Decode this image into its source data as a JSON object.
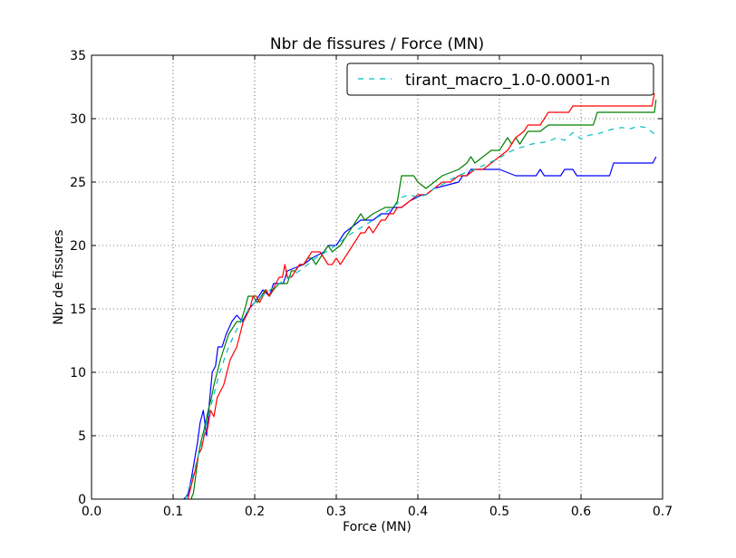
{
  "chart_data": {
    "type": "line",
    "title": "Nbr de fissures / Force (MN)",
    "xlabel": "Force (MN)",
    "ylabel": "Nbr de fissures",
    "xlim": [
      0.0,
      0.7
    ],
    "ylim": [
      0,
      35
    ],
    "xticks": [
      "0.0",
      "0.1",
      "0.2",
      "0.3",
      "0.4",
      "0.5",
      "0.6",
      "0.7"
    ],
    "yticks": [
      "0",
      "5",
      "10",
      "15",
      "20",
      "25",
      "30",
      "35"
    ],
    "grid": true,
    "legend_position": "top-right",
    "legend": [
      {
        "label": "tirant_macro_1.0-0.0001-n",
        "color": "#00bfbf",
        "dash": "dashed"
      }
    ],
    "series": [
      {
        "color": "#0000ff",
        "style": "solid",
        "points": [
          [
            0.113,
            0
          ],
          [
            0.118,
            0.3
          ],
          [
            0.122,
            1.5
          ],
          [
            0.126,
            3
          ],
          [
            0.13,
            4.5
          ],
          [
            0.133,
            6
          ],
          [
            0.137,
            7
          ],
          [
            0.141,
            5
          ],
          [
            0.145,
            8
          ],
          [
            0.148,
            10
          ],
          [
            0.152,
            10.5
          ],
          [
            0.155,
            12
          ],
          [
            0.16,
            12
          ],
          [
            0.165,
            13
          ],
          [
            0.172,
            14
          ],
          [
            0.178,
            14.5
          ],
          [
            0.185,
            14
          ],
          [
            0.193,
            15
          ],
          [
            0.2,
            15.5
          ],
          [
            0.205,
            16
          ],
          [
            0.21,
            16.5
          ],
          [
            0.218,
            16
          ],
          [
            0.223,
            17
          ],
          [
            0.235,
            17
          ],
          [
            0.24,
            18
          ],
          [
            0.26,
            18.5
          ],
          [
            0.27,
            19
          ],
          [
            0.285,
            19.5
          ],
          [
            0.29,
            20
          ],
          [
            0.3,
            20
          ],
          [
            0.305,
            20.5
          ],
          [
            0.31,
            21
          ],
          [
            0.32,
            21.5
          ],
          [
            0.33,
            22
          ],
          [
            0.345,
            22
          ],
          [
            0.355,
            22.5
          ],
          [
            0.365,
            22.5
          ],
          [
            0.37,
            23
          ],
          [
            0.38,
            23
          ],
          [
            0.39,
            23.5
          ],
          [
            0.405,
            24
          ],
          [
            0.41,
            24
          ],
          [
            0.42,
            24.5
          ],
          [
            0.45,
            25
          ],
          [
            0.455,
            25.5
          ],
          [
            0.46,
            25.5
          ],
          [
            0.465,
            26
          ],
          [
            0.5,
            26
          ],
          [
            0.52,
            25.5
          ],
          [
            0.545,
            25.5
          ],
          [
            0.55,
            26
          ],
          [
            0.555,
            25.5
          ],
          [
            0.575,
            25.5
          ],
          [
            0.58,
            26
          ],
          [
            0.59,
            26
          ],
          [
            0.595,
            25.5
          ],
          [
            0.635,
            25.5
          ],
          [
            0.64,
            26.5
          ],
          [
            0.688,
            26.5
          ],
          [
            0.692,
            27
          ]
        ]
      },
      {
        "color": "#008000",
        "style": "solid",
        "points": [
          [
            0.122,
            0
          ],
          [
            0.125,
            0.5
          ],
          [
            0.128,
            2
          ],
          [
            0.131,
            3.5
          ],
          [
            0.134,
            4.5
          ],
          [
            0.138,
            5.5
          ],
          [
            0.143,
            7
          ],
          [
            0.147,
            8
          ],
          [
            0.15,
            9
          ],
          [
            0.154,
            10
          ],
          [
            0.158,
            11
          ],
          [
            0.163,
            12
          ],
          [
            0.168,
            13
          ],
          [
            0.173,
            13.5
          ],
          [
            0.178,
            14
          ],
          [
            0.183,
            14
          ],
          [
            0.188,
            15
          ],
          [
            0.192,
            16
          ],
          [
            0.198,
            16
          ],
          [
            0.203,
            15.5
          ],
          [
            0.208,
            16
          ],
          [
            0.213,
            16.5
          ],
          [
            0.218,
            16
          ],
          [
            0.223,
            16.5
          ],
          [
            0.23,
            17
          ],
          [
            0.24,
            17
          ],
          [
            0.245,
            18
          ],
          [
            0.25,
            18
          ],
          [
            0.255,
            18.5
          ],
          [
            0.26,
            18.5
          ],
          [
            0.265,
            19
          ],
          [
            0.27,
            19
          ],
          [
            0.275,
            18.5
          ],
          [
            0.28,
            19
          ],
          [
            0.285,
            19.5
          ],
          [
            0.29,
            20
          ],
          [
            0.295,
            19.5
          ],
          [
            0.305,
            20
          ],
          [
            0.31,
            20.5
          ],
          [
            0.315,
            21
          ],
          [
            0.32,
            21.5
          ],
          [
            0.325,
            22
          ],
          [
            0.33,
            22.5
          ],
          [
            0.335,
            22
          ],
          [
            0.345,
            22.5
          ],
          [
            0.36,
            23
          ],
          [
            0.37,
            23
          ],
          [
            0.375,
            23.5
          ],
          [
            0.38,
            25.5
          ],
          [
            0.395,
            25.5
          ],
          [
            0.4,
            25
          ],
          [
            0.41,
            24.5
          ],
          [
            0.42,
            25
          ],
          [
            0.43,
            25.5
          ],
          [
            0.45,
            26
          ],
          [
            0.46,
            26.5
          ],
          [
            0.465,
            27
          ],
          [
            0.47,
            26.5
          ],
          [
            0.48,
            27
          ],
          [
            0.49,
            27.5
          ],
          [
            0.5,
            27.5
          ],
          [
            0.505,
            28
          ],
          [
            0.51,
            28.5
          ],
          [
            0.515,
            28
          ],
          [
            0.52,
            28.5
          ],
          [
            0.525,
            28
          ],
          [
            0.53,
            28.5
          ],
          [
            0.535,
            29
          ],
          [
            0.55,
            29
          ],
          [
            0.56,
            29.5
          ],
          [
            0.615,
            29.5
          ],
          [
            0.62,
            30.5
          ],
          [
            0.69,
            30.5
          ],
          [
            0.692,
            31.5
          ]
        ]
      },
      {
        "color": "#ff0000",
        "style": "solid",
        "points": [
          [
            0.118,
            0
          ],
          [
            0.12,
            0.5
          ],
          [
            0.124,
            1.5
          ],
          [
            0.128,
            2.5
          ],
          [
            0.131,
            3.5
          ],
          [
            0.135,
            4
          ],
          [
            0.138,
            5
          ],
          [
            0.142,
            5.5
          ],
          [
            0.146,
            7
          ],
          [
            0.15,
            6.5
          ],
          [
            0.154,
            8
          ],
          [
            0.158,
            8.5
          ],
          [
            0.162,
            9
          ],
          [
            0.166,
            10
          ],
          [
            0.17,
            11
          ],
          [
            0.174,
            11.5
          ],
          [
            0.178,
            12
          ],
          [
            0.182,
            13
          ],
          [
            0.186,
            14
          ],
          [
            0.19,
            14.5
          ],
          [
            0.194,
            15
          ],
          [
            0.198,
            16
          ],
          [
            0.202,
            16
          ],
          [
            0.206,
            15.5
          ],
          [
            0.21,
            16
          ],
          [
            0.214,
            16.5
          ],
          [
            0.218,
            16
          ],
          [
            0.222,
            16.5
          ],
          [
            0.226,
            17
          ],
          [
            0.23,
            17.5
          ],
          [
            0.234,
            17.5
          ],
          [
            0.237,
            18.5
          ],
          [
            0.24,
            17.5
          ],
          [
            0.245,
            17.5
          ],
          [
            0.25,
            18
          ],
          [
            0.255,
            18.5
          ],
          [
            0.26,
            18.5
          ],
          [
            0.265,
            19
          ],
          [
            0.27,
            19.5
          ],
          [
            0.28,
            19.5
          ],
          [
            0.285,
            19
          ],
          [
            0.29,
            18.5
          ],
          [
            0.295,
            18.5
          ],
          [
            0.3,
            19
          ],
          [
            0.305,
            18.5
          ],
          [
            0.31,
            19
          ],
          [
            0.315,
            19.5
          ],
          [
            0.32,
            20
          ],
          [
            0.325,
            20.5
          ],
          [
            0.33,
            21
          ],
          [
            0.335,
            21
          ],
          [
            0.34,
            21.5
          ],
          [
            0.345,
            21
          ],
          [
            0.35,
            21.5
          ],
          [
            0.355,
            22
          ],
          [
            0.36,
            22
          ],
          [
            0.365,
            22.5
          ],
          [
            0.37,
            22.5
          ],
          [
            0.375,
            23
          ],
          [
            0.38,
            23
          ],
          [
            0.39,
            23.5
          ],
          [
            0.4,
            24
          ],
          [
            0.41,
            24
          ],
          [
            0.42,
            24.5
          ],
          [
            0.43,
            25
          ],
          [
            0.44,
            25
          ],
          [
            0.45,
            25.5
          ],
          [
            0.46,
            25.5
          ],
          [
            0.47,
            26
          ],
          [
            0.48,
            26
          ],
          [
            0.49,
            26.5
          ],
          [
            0.5,
            27
          ],
          [
            0.51,
            27.5
          ],
          [
            0.515,
            28
          ],
          [
            0.52,
            28.5
          ],
          [
            0.53,
            29
          ],
          [
            0.535,
            29.5
          ],
          [
            0.55,
            29.5
          ],
          [
            0.555,
            30
          ],
          [
            0.56,
            30.5
          ],
          [
            0.585,
            30.5
          ],
          [
            0.59,
            31
          ],
          [
            0.687,
            31
          ],
          [
            0.69,
            32
          ]
        ]
      },
      {
        "color": "#00bfbf",
        "style": "dashed",
        "points": [
          [
            0.115,
            0
          ],
          [
            0.125,
            2
          ],
          [
            0.135,
            4.5
          ],
          [
            0.145,
            7
          ],
          [
            0.155,
            9.5
          ],
          [
            0.165,
            11.5
          ],
          [
            0.175,
            13
          ],
          [
            0.185,
            14.2
          ],
          [
            0.195,
            15.2
          ],
          [
            0.205,
            15.8
          ],
          [
            0.215,
            16.3
          ],
          [
            0.225,
            16.8
          ],
          [
            0.235,
            17.2
          ],
          [
            0.245,
            17.6
          ],
          [
            0.255,
            18
          ],
          [
            0.265,
            18.5
          ],
          [
            0.275,
            19
          ],
          [
            0.285,
            19.4
          ],
          [
            0.295,
            19.8
          ],
          [
            0.305,
            20.3
          ],
          [
            0.315,
            20.8
          ],
          [
            0.325,
            21.2
          ],
          [
            0.335,
            21.6
          ],
          [
            0.345,
            22
          ],
          [
            0.355,
            22.4
          ],
          [
            0.365,
            22.8
          ],
          [
            0.375,
            23.3
          ],
          [
            0.38,
            23.8
          ],
          [
            0.39,
            24
          ],
          [
            0.4,
            23.8
          ],
          [
            0.41,
            24
          ],
          [
            0.42,
            24.5
          ],
          [
            0.43,
            24.8
          ],
          [
            0.44,
            25.2
          ],
          [
            0.45,
            25.5
          ],
          [
            0.46,
            25.8
          ],
          [
            0.47,
            26
          ],
          [
            0.48,
            26.3
          ],
          [
            0.49,
            26.6
          ],
          [
            0.5,
            26.9
          ],
          [
            0.51,
            27.3
          ],
          [
            0.52,
            27.6
          ],
          [
            0.53,
            27.8
          ],
          [
            0.54,
            28
          ],
          [
            0.55,
            28.1
          ],
          [
            0.56,
            28.2
          ],
          [
            0.57,
            28.5
          ],
          [
            0.58,
            28.3
          ],
          [
            0.59,
            28.9
          ],
          [
            0.6,
            28.4
          ],
          [
            0.61,
            28.7
          ],
          [
            0.62,
            28.8
          ],
          [
            0.63,
            29
          ],
          [
            0.64,
            29.2
          ],
          [
            0.65,
            29.3
          ],
          [
            0.66,
            29.2
          ],
          [
            0.67,
            29.4
          ],
          [
            0.68,
            29.3
          ],
          [
            0.69,
            28.8
          ]
        ]
      }
    ]
  }
}
